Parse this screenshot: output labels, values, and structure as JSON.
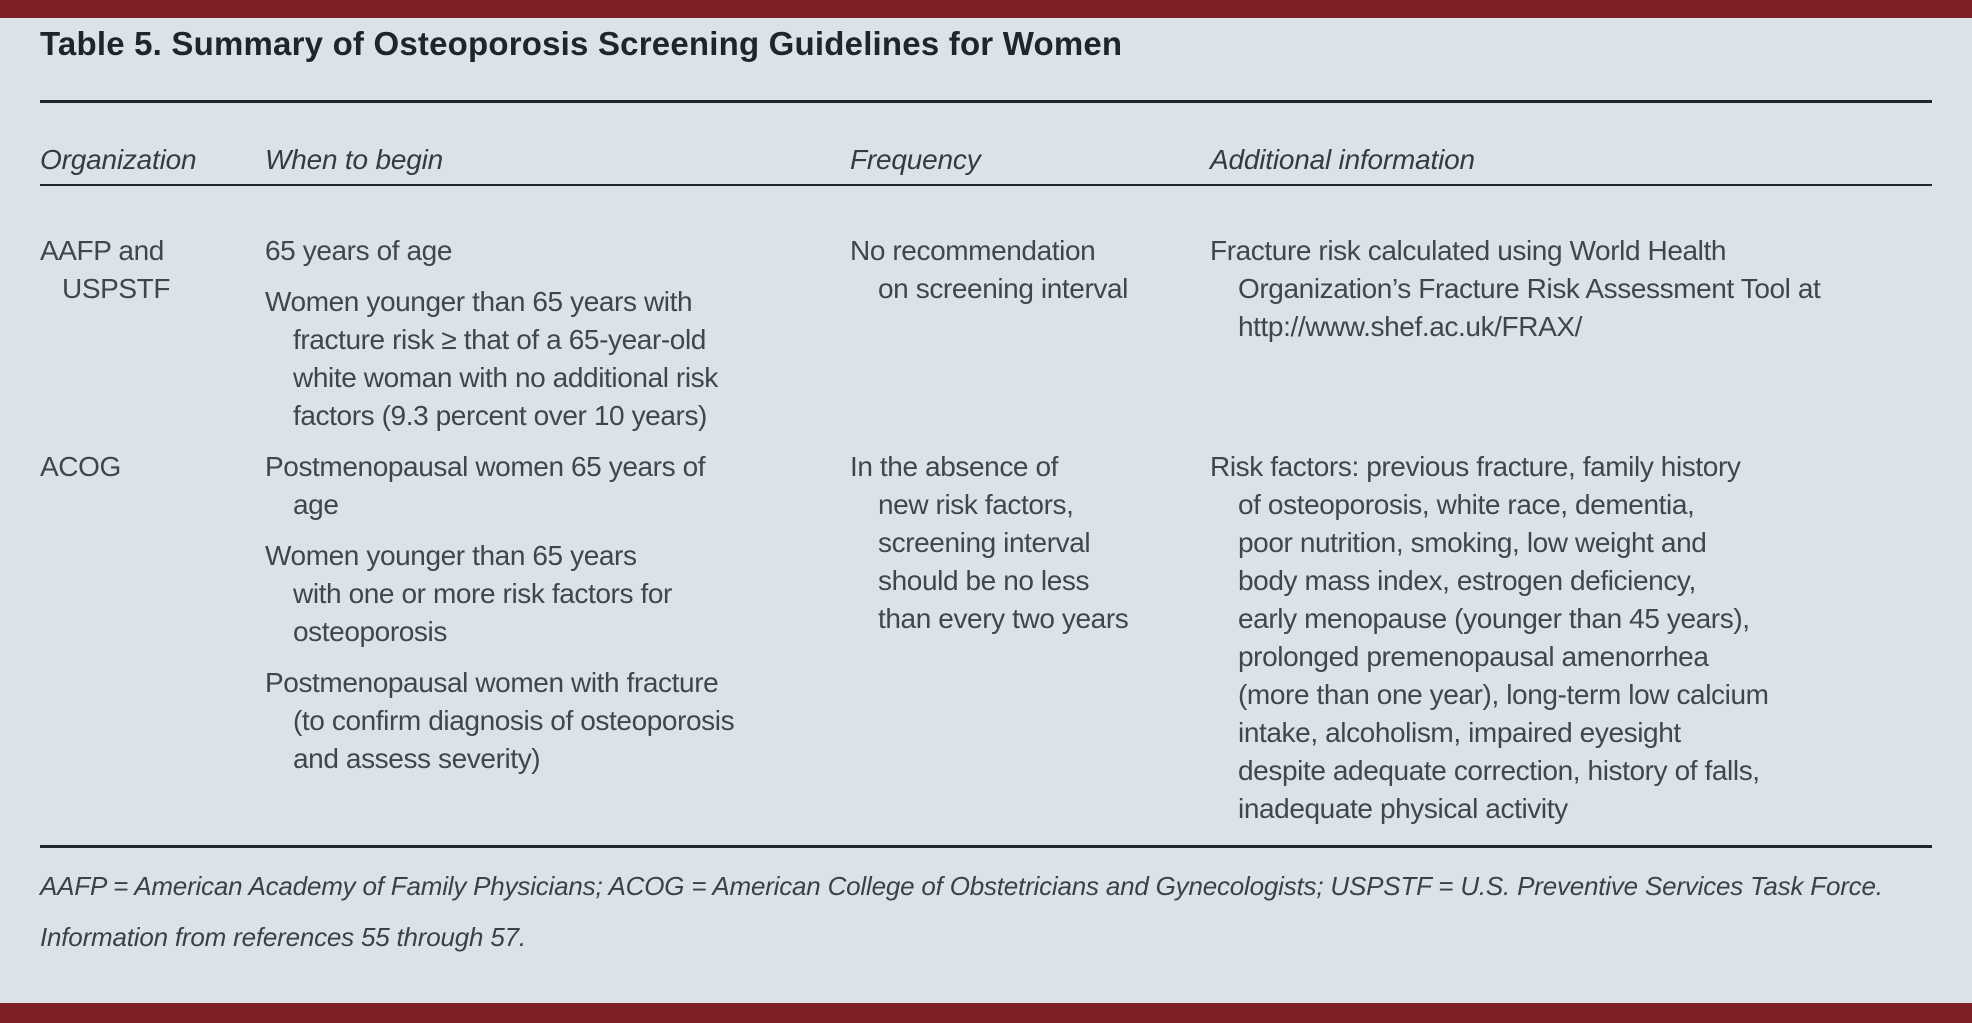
{
  "colors": {
    "accent_bar": "#7d2127",
    "background": "#dbe3e9",
    "rule": "#23272b",
    "title_text": "#1e252d",
    "body_text": "#3f464d"
  },
  "table": {
    "title": "Table 5. Summary of Osteoporosis Screening Guidelines for Women",
    "columns": [
      "Organization",
      "When to begin",
      "Frequency",
      "Additional information"
    ],
    "rows": [
      {
        "organization": [
          [
            "AAFP and",
            "USPSTF"
          ]
        ],
        "when_to_begin": [
          [
            "65 years of age"
          ],
          [
            "Women younger than 65 years with",
            "fracture risk ≥ that of a 65-year-old",
            "white woman with no additional risk",
            "factors (9.3 percent over 10 years)"
          ]
        ],
        "frequency": [
          [
            "No recommendation",
            "on screening interval"
          ]
        ],
        "additional_information": [
          [
            "Fracture risk calculated using World Health",
            "Organization’s Fracture Risk Assessment Tool at",
            "http://www.shef.ac.uk/FRAX/"
          ]
        ]
      },
      {
        "organization": [
          [
            "ACOG"
          ]
        ],
        "when_to_begin": [
          [
            "Postmenopausal women 65 years of",
            "age"
          ],
          [
            "Women younger than 65 years",
            "with one or more risk factors for",
            "osteoporosis"
          ],
          [
            "Postmenopausal women with fracture",
            "(to confirm diagnosis of osteoporosis",
            "and assess severity)"
          ]
        ],
        "frequency": [
          [
            "In the absence of",
            "new risk factors,",
            "screening interval",
            "should be no less",
            "than every two years"
          ]
        ],
        "additional_information": [
          [
            "Risk factors: previous fracture, family history",
            "of osteoporosis, white race, dementia,",
            "poor nutrition, smoking, low weight and",
            "body mass index, estrogen deficiency,",
            "early menopause (younger than 45 years),",
            "prolonged premenopausal amenorrhea",
            "(more than one year), long-term low calcium",
            "intake, alcoholism, impaired eyesight",
            "despite adequate correction, history of falls,",
            "inadequate physical activity"
          ]
        ]
      }
    ],
    "footnotes": [
      "AAFP = American Academy of Family Physicians; ACOG = American College of Obstetricians and Gynecologists; USPSTF = U.S. Preventive Services Task Force.",
      "Information from references 55 through 57."
    ]
  }
}
